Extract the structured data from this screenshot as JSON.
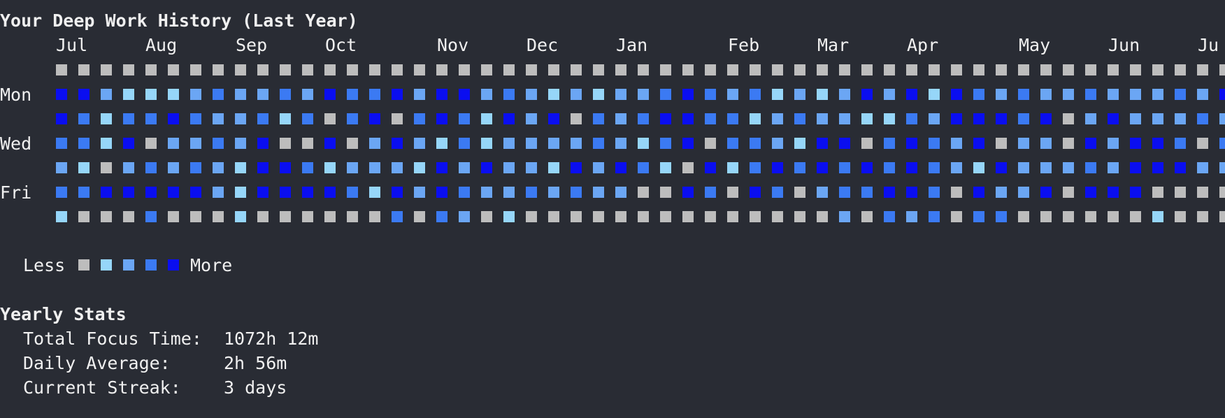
{
  "title": "Your Deep Work History (Last Year)",
  "months": [
    "Jul",
    "Aug",
    "Sep",
    "Oct",
    "Nov",
    "Dec",
    "Jan",
    "Feb",
    "Mar",
    "Apr",
    "May",
    "Jun",
    "Ju"
  ],
  "day_labels": [
    "Mon",
    "Wed",
    "Fri"
  ],
  "levels": [
    "#bdbdbd",
    "#96d6f9",
    "#6ba6f4",
    "#3b7af3",
    "#0a0ef0"
  ],
  "heatmap": [
    "00000000000000000000000000000000000000000000000000000",
    "44211123223243342442321212234323121242414323223222324",
    "43133432231303403431424032344331232211324443402422232",
    "33140223240040242131222232134033214403432402204244303",
    "21023232144312221424221424310413434343432142223244422",
    "33444442144443142432232322004304302334430422404440000",
    "10003000100000030320100000000000000203230330000001000"
  ],
  "legend": {
    "less": "Less",
    "more": "More"
  },
  "stats": {
    "heading": "Yearly Stats",
    "rows": [
      {
        "label": "Total Focus Time:",
        "value": "1072h 12m"
      },
      {
        "label": "Daily Average:",
        "value": "2h 56m"
      },
      {
        "label": "Current Streak:",
        "value": "3 days"
      }
    ]
  }
}
